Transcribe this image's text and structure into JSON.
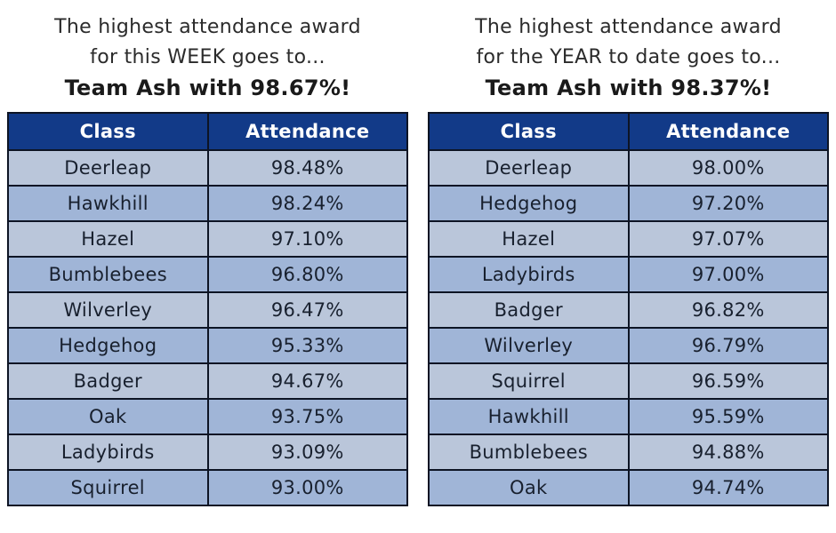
{
  "left_panel": {
    "title_line1": "The highest attendance award",
    "title_line2": "for this WEEK goes to...",
    "award_line": "Team Ash with 98.67%!"
  },
  "right_panel": {
    "title_line1": "The highest attendance award",
    "title_line2": "for the YEAR to date goes to...",
    "award_line": "Team Ash with 98.37%!"
  },
  "chart_data": [
    {
      "type": "table",
      "name": "weekly-attendance",
      "title": "The highest attendance award for this WEEK goes to... Team Ash with 98.67%!",
      "columns": [
        "Class",
        "Attendance"
      ],
      "rows": [
        [
          "Deerleap",
          "98.48%"
        ],
        [
          "Hawkhill",
          "98.24%"
        ],
        [
          "Hazel",
          "97.10%"
        ],
        [
          "Bumblebees",
          "96.80%"
        ],
        [
          "Wilverley",
          "96.47%"
        ],
        [
          "Hedgehog",
          "95.33%"
        ],
        [
          "Badger",
          "94.67%"
        ],
        [
          "Oak",
          "93.75%"
        ],
        [
          "Ladybirds",
          "93.09%"
        ],
        [
          "Squirrel",
          "93.00%"
        ]
      ]
    },
    {
      "type": "table",
      "name": "year-to-date-attendance",
      "title": "The highest attendance award for the YEAR to date goes to... Team Ash with 98.37%!",
      "columns": [
        "Class",
        "Attendance"
      ],
      "rows": [
        [
          "Deerleap",
          "98.00%"
        ],
        [
          "Hedgehog",
          "97.20%"
        ],
        [
          "Hazel",
          "97.07%"
        ],
        [
          "Ladybirds",
          "97.00%"
        ],
        [
          "Badger",
          "96.82%"
        ],
        [
          "Wilverley",
          "96.79%"
        ],
        [
          "Squirrel",
          "96.59%"
        ],
        [
          "Hawkhill",
          "95.59%"
        ],
        [
          "Bumblebees",
          "94.88%"
        ],
        [
          "Oak",
          "94.74%"
        ]
      ]
    }
  ],
  "colors": {
    "header_bg": "#123a88",
    "header_text": "#ffffff",
    "row_light": "#bac6da",
    "row_dark": "#a0b5d7",
    "border": "#0d1424",
    "cell_text": "#18202e",
    "title_text": "#2b2b2b"
  }
}
